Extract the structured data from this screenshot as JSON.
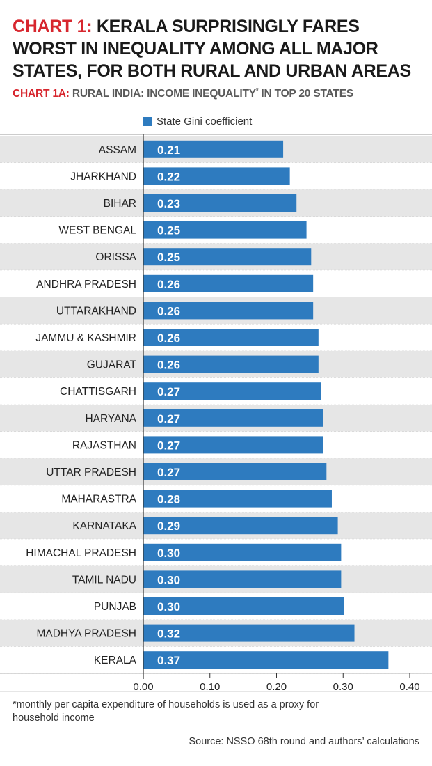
{
  "header": {
    "title_prefix": "CHART 1:",
    "title_rest": "KERALA SURPRISINGLY FARES WORST IN INEQUALITY AMONG ALL MAJOR STATES, FOR BOTH RURAL AND URBAN AREAS",
    "subtitle_prefix": "CHART 1A:",
    "subtitle_rest_1": "RURAL INDIA: INCOME INEQUALITY",
    "subtitle_sup": "*",
    "subtitle_rest_2": " IN TOP 20 STATES"
  },
  "colors": {
    "accent": "#d7262e",
    "bar": "#2e7bbf",
    "stripe": "#e6e6e6",
    "divider": "#9a9a9a"
  },
  "chart_data": {
    "type": "bar",
    "orientation": "horizontal",
    "categories": [
      "ASSAM",
      "JHARKHAND",
      "BIHAR",
      "WEST BENGAL",
      "ORISSA",
      "ANDHRA PRADESH",
      "UTTARAKHAND",
      "JAMMU & KASHMIR",
      "GUJARAT",
      "CHATTISGARH",
      "HARYANA",
      "RAJASTHAN",
      "UTTAR PRADESH",
      "MAHARASTRA",
      "KARNATAKA",
      "HIMACHAL PRADESH",
      "TAMIL NADU",
      "PUNJAB",
      "MADHYA PRADESH",
      "KERALA"
    ],
    "values": [
      0.21,
      0.22,
      0.23,
      0.245,
      0.252,
      0.255,
      0.255,
      0.263,
      0.263,
      0.267,
      0.27,
      0.27,
      0.275,
      0.283,
      0.292,
      0.297,
      0.297,
      0.301,
      0.317,
      0.368
    ],
    "value_labels": [
      "0.21",
      "0.22",
      "0.23",
      "0.25",
      "0.25",
      "0.26",
      "0.26",
      "0.26",
      "0.26",
      "0.27",
      "0.27",
      "0.27",
      "0.27",
      "0.28",
      "0.29",
      "0.30",
      "0.30",
      "0.30",
      "0.32",
      "0.37"
    ],
    "series": [
      {
        "name": "State Gini coefficient"
      }
    ],
    "xlim": [
      0,
      0.4
    ],
    "xticks": [
      "0.00",
      "0.10",
      "0.20",
      "0.30",
      "0.40"
    ],
    "xtick_values": [
      0,
      0.1,
      0.2,
      0.3,
      0.4
    ],
    "legend": "top-left",
    "grid": false,
    "row_striping": true
  },
  "footnote": "*monthly per capita expenditure of households is used as a proxy for household income",
  "source": "Source: NSSO 68th round and authors’ calculations"
}
